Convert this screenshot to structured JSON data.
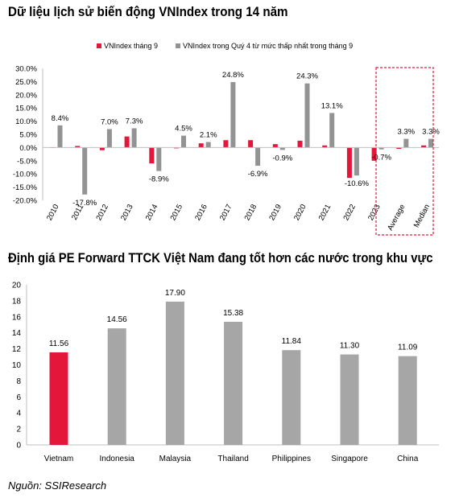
{
  "source": "Nguồn: SSIResearch",
  "colors": {
    "red": "#E4173A",
    "gray": "#939393",
    "dash": "#E4173A"
  },
  "chart_data": [
    {
      "type": "bar",
      "title": "Dữ liệu lịch sử biến động VNIndex  trong 14 năm",
      "categories": [
        "2010",
        "2011",
        "2012",
        "2013",
        "2014",
        "2015",
        "2016",
        "2017",
        "2018",
        "2019",
        "2020",
        "2021",
        "2022",
        "2023",
        "Average",
        "Median"
      ],
      "series": [
        {
          "name": "VNIndex tháng 9",
          "color": "#E4173A",
          "values": [
            0.0,
            0.6,
            -1.0,
            4.2,
            -6.0,
            -0.3,
            1.6,
            2.8,
            2.8,
            1.3,
            2.6,
            0.8,
            -11.5,
            -5.0,
            -0.5,
            0.8
          ]
        },
        {
          "name": "VNIndex trong Quý 4 từ mức thấp nhất trong tháng 9",
          "color": "#939393",
          "values": [
            8.4,
            -17.8,
            7.0,
            7.3,
            -8.9,
            4.5,
            2.1,
            24.8,
            -6.9,
            -0.9,
            24.3,
            13.1,
            -10.6,
            -0.7,
            3.3,
            3.3
          ]
        }
      ],
      "data_labels": [
        "8.4%",
        "-17.8%",
        "7.0%",
        "7.3%",
        "-8.9%",
        "4.5%",
        "2.1%",
        "24.8%",
        "-6.9%",
        "-0.9%",
        "24.3%",
        "13.1%",
        "-10.6%",
        "-0.7%",
        "3.3%",
        "3.3%"
      ],
      "y_ticks": [
        "30.0%",
        "25.0%",
        "20.0%",
        "15.0%",
        "10.0%",
        "5.0%",
        "0.0%",
        "-5.0%",
        "-10.0%",
        "-15.0%",
        "-20.0%"
      ],
      "ylim": [
        -20,
        30
      ],
      "highlight_box_categories": [
        "Average",
        "Median"
      ],
      "legend_position": "top"
    },
    {
      "type": "bar",
      "title": "Định giá PE Forward TTCK Việt Nam đang tốt hơn các nước trong khu vực",
      "categories": [
        "Vietnam",
        "Indonesia",
        "Malaysia",
        "Thailand",
        "Philippines",
        "Singapore",
        "China"
      ],
      "values": [
        11.56,
        14.56,
        17.9,
        15.38,
        11.84,
        11.3,
        11.09
      ],
      "data_labels": [
        "11.56",
        "14.56",
        "17.90",
        "15.38",
        "11.84",
        "11.30",
        "11.09"
      ],
      "bar_colors": [
        "#E4173A",
        "#A6A6A6",
        "#A6A6A6",
        "#A6A6A6",
        "#A6A6A6",
        "#A6A6A6",
        "#A6A6A6"
      ],
      "y_ticks": [
        "20",
        "18",
        "16",
        "14",
        "12",
        "10",
        "8",
        "6",
        "4",
        "2",
        "0"
      ],
      "ylim": [
        0,
        20
      ]
    }
  ]
}
